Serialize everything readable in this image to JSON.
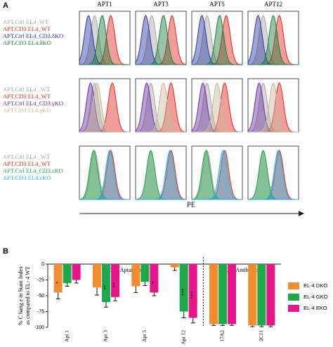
{
  "panel_a": {
    "label": "A",
    "columns": [
      "APT1",
      "APT3",
      "APT5",
      "APT12"
    ],
    "axis_label": "PE",
    "groups": [
      {
        "legend": [
          {
            "text": "APT.Ctrl EL4_WT",
            "color": "#a6a6a6"
          },
          {
            "text": "APT.CD3 EL4_WT",
            "color": "#e0261f"
          },
          {
            "text": "APT.Ctrl EL4_CD3.δKO",
            "color": "#2b35a3"
          },
          {
            "text": "APT.CD3 EL4.δKO",
            "color": "#1d7a3c"
          }
        ]
      },
      {
        "legend": [
          {
            "text": "APT.Ctrl EL4 _WT",
            "color": "#a6a6a6"
          },
          {
            "text": "APT.CD3 EL4_WT",
            "color": "#e0261f"
          },
          {
            "text": "APT.Ctrl EL4_CD3.γKO",
            "color": "#6b2ea3"
          },
          {
            "text": "APT.CD3 EL4.γKO",
            "color": "#c9b79c"
          }
        ]
      },
      {
        "legend": [
          {
            "text": "APT.Ctrl EL4 _WT",
            "color": "#a6a6a6"
          },
          {
            "text": "APT.CD3 EL4_WT",
            "color": "#e0261f"
          },
          {
            "text": "APT.Ctrl EL4_CD3.εKO",
            "color": "#22a64a"
          },
          {
            "text": "APT.CD3 EL4.εKO",
            "color": "#22b3e6"
          }
        ]
      }
    ]
  },
  "chart_data": {
    "type": "bar",
    "panel_label": "B",
    "y_label": [
      "% C hang e in Stain Index",
      "as compared   to EL- 4 WT"
    ],
    "group_labels": [
      "CD3Aptamers",
      "CD3 Antibodies"
    ],
    "categories": [
      "Apt 1",
      "Apt 3",
      "Apt 5",
      "Apt 12",
      "17A2",
      "2C11"
    ],
    "series": [
      {
        "name": "EL-4 DKO",
        "color": "#f28a2e",
        "values": [
          -45,
          -37,
          -35,
          -5,
          -95,
          -97
        ],
        "errors": [
          10,
          12,
          10,
          5,
          2,
          2
        ],
        "stars": [
          "*",
          null,
          null,
          null,
          null,
          null
        ]
      },
      {
        "name": "EL-4 GKO",
        "color": "#1fa84a",
        "values": [
          -30,
          -60,
          -28,
          -75,
          -95,
          -97
        ],
        "errors": [
          5,
          8,
          6,
          10,
          2,
          2
        ],
        "stars": [
          null,
          "**",
          null,
          "***",
          null,
          null
        ]
      },
      {
        "name": "EL-4 EKO",
        "color": "#e4168b",
        "values": [
          -25,
          -52,
          -45,
          -85,
          -95,
          -97
        ],
        "errors": [
          5,
          6,
          5,
          8,
          2,
          2
        ],
        "stars": [
          null,
          "**",
          "*",
          "***",
          null,
          null
        ]
      }
    ],
    "ylim": [
      -100,
      0
    ],
    "yticks": [
      0,
      -25,
      -50,
      -75,
      -100
    ]
  }
}
